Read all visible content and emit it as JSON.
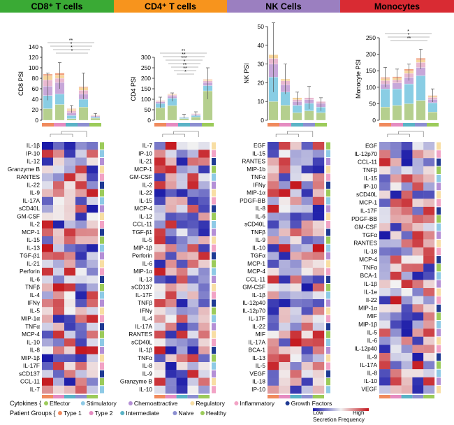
{
  "colors": {
    "cd8": "#3aaa35",
    "cd4": "#f7941d",
    "nk": "#9b7fc0",
    "mono": "#d92b33",
    "bar_stack": [
      "#b5cf8e",
      "#89cde4",
      "#c7a7d9",
      "#e9b8d0",
      "#f7d59b",
      "#f1a17f"
    ],
    "group_bar": [
      "#f08a5d",
      "#e58bc1",
      "#5ab3c6",
      "#8c8fd1",
      "#9ccb5a"
    ],
    "cytokine_cat": {
      "Effector": "#9ccb5a",
      "Stimulatory": "#8ecae6",
      "Chemoattractive": "#b48fd6",
      "Regulatory": "#f8dea3",
      "Inflammatory": "#f2a3c5",
      "Growth Factors": "#1f3a93"
    },
    "group": {
      "Type 1": "#f08a5d",
      "Type 2": "#e58bc1",
      "Intermediate": "#5ab3c6",
      "Naive": "#8c8fd1",
      "Healthy": "#9ccb5a"
    },
    "heat_low": "#1a1aa8",
    "heat_mid": "#f2f2f2",
    "heat_high": "#c4161c"
  },
  "panels": [
    {
      "title": "CD8⁺ T cells",
      "title_color": "#3aaa35",
      "ylabel": "CD8 PSI",
      "ylim": [
        0,
        140
      ],
      "yticks": [
        0,
        20,
        40,
        60,
        80,
        100,
        120,
        140
      ],
      "group_order": [
        "Type 1",
        "Type 2",
        "Intermediate",
        "Naive",
        "Healthy"
      ],
      "chart_data": {
        "type": "bar",
        "stacked": true,
        "categories": [
          "Type 1",
          "Type 2",
          "Intermediate",
          "Naive",
          "Healthy"
        ],
        "totals": [
          88,
          90,
          22,
          64,
          10
        ],
        "error": [
          [
            38,
            90
          ],
          [
            60,
            110
          ],
          [
            14,
            28
          ],
          [
            40,
            90
          ],
          [
            6,
            13
          ]
        ],
        "series": [
          {
            "values": [
              22,
              30,
              3,
              25,
              4
            ]
          },
          {
            "values": [
              25,
              20,
              6,
              15,
              2
            ]
          },
          {
            "values": [
              18,
              22,
              5,
              10,
              2
            ]
          },
          {
            "values": [
              12,
              8,
              4,
              7,
              1
            ]
          },
          {
            "values": [
              8,
              6,
              3,
              5,
              1
            ]
          },
          {
            "values": [
              3,
              4,
              1,
              2,
              0
            ]
          }
        ],
        "significance": [
          "**",
          "*",
          "*",
          "*"
        ]
      },
      "cytokines": [
        "IL-1β",
        "IP-10",
        "IL-12",
        "Granzyme B",
        "RANTES",
        "IL-22",
        "IL-9",
        "IL-17A",
        "sCD40L",
        "GM-CSF",
        "IL-2",
        "MCP-1",
        "IL-15",
        "IL-13",
        "TGF-β1",
        "IL-21",
        "Perforin",
        "IL-6",
        "TNFβ",
        "IL-4",
        "IFNγ",
        "IL-5",
        "MIP-1α",
        "TNFα",
        "MCP-4",
        "IL-10",
        "IL-8",
        "MIP-1β",
        "IL-17F",
        "sCD137",
        "CCL-11",
        "IL-7"
      ]
    },
    {
      "title": "CD4⁺ T cells",
      "title_color": "#f7941d",
      "ylabel": "CD4 PSI",
      "ylim": [
        0,
        300
      ],
      "yticks": [
        0,
        50,
        100,
        150,
        200,
        250,
        300
      ],
      "group_order": [
        "Type 1",
        "Type 2",
        "Intermediate",
        "Naive",
        "Healthy"
      ],
      "chart_data": {
        "type": "bar",
        "stacked": true,
        "categories": [
          "Type 1",
          "Type 2",
          "Intermediate",
          "Naive",
          "Healthy"
        ],
        "totals": [
          95,
          125,
          18,
          32,
          195
        ],
        "error": [
          [
            60,
            110
          ],
          [
            90,
            130
          ],
          [
            10,
            28
          ],
          [
            20,
            40
          ],
          [
            100,
            250
          ]
        ],
        "series": [
          {
            "values": [
              60,
              70,
              8,
              15,
              140
            ]
          },
          {
            "values": [
              20,
              35,
              5,
              8,
              25
            ]
          },
          {
            "values": [
              8,
              10,
              2,
              4,
              15
            ]
          },
          {
            "values": [
              4,
              5,
              1,
              3,
              8
            ]
          },
          {
            "values": [
              2,
              3,
              1,
              1,
              5
            ]
          },
          {
            "values": [
              1,
              2,
              1,
              1,
              2
            ]
          }
        ],
        "significance": [
          "**",
          "**",
          "***",
          "*",
          "**",
          "**",
          "*"
        ]
      },
      "cytokines": [
        "IL-7",
        "IP-10",
        "IL-21",
        "MCP-1",
        "GM-CSF",
        "IL-2",
        "IL-22",
        "IL-15",
        "MCP-4",
        "IL-12",
        "CCL-11",
        "TGF-β1",
        "IL-5",
        "MIP-1β",
        "Perforin",
        "IL-6",
        "MIP-1α",
        "IL-13",
        "sCD137",
        "IL-17F",
        "TNFβ",
        "IFNγ",
        "IL-4",
        "IL-17A",
        "RANTES",
        "sCD40L",
        "IL-1β",
        "TNFα",
        "IL-8",
        "IL-9",
        "Granzyme B",
        "IL-10"
      ]
    },
    {
      "title": "NK Cells",
      "title_color": "#9b7fc0",
      "ylabel": "NK PSI",
      "ylim": [
        0,
        50
      ],
      "yticks": [
        0,
        10,
        20,
        30,
        40,
        50
      ],
      "group_order": [
        "Type 1",
        "Type 2",
        "Intermediate",
        "Naive",
        "Healthy"
      ],
      "chart_data": {
        "type": "bar",
        "stacked": true,
        "categories": [
          "Type 1",
          "Type 2",
          "Intermediate",
          "Naive",
          "Healthy"
        ],
        "totals": [
          35,
          22,
          12,
          12,
          10
        ],
        "error": [
          [
            15,
            52
          ],
          [
            14,
            30
          ],
          [
            8,
            15
          ],
          [
            6,
            18
          ],
          [
            5,
            12
          ]
        ],
        "series": [
          {
            "values": [
              10,
              8,
              4,
              5,
              4
            ]
          },
          {
            "values": [
              13,
              7,
              4,
              4,
              3
            ]
          },
          {
            "values": [
              7,
              4,
              2,
              2,
              2
            ]
          },
          {
            "values": [
              3,
              2,
              1,
              1,
              1
            ]
          },
          {
            "values": [
              2,
              1,
              1,
              0,
              0
            ]
          }
        ],
        "significance": []
      },
      "cytokines": [
        "EGF",
        "IL-15",
        "RANTES",
        "MIP-1b",
        "TNFα",
        "IFNγ",
        "MIP-1α",
        "PDGF-BB",
        "IL-8",
        "IL-6",
        "sCD40L",
        "TNFβ",
        "IL-9",
        "IL-10",
        "TGFα",
        "MCP-1",
        "MCP-4",
        "CCL-11",
        "GM-CSF",
        "IL-1β",
        "IL-12p40",
        "IL-12p70",
        "IL-17F",
        "IL-22",
        "MIF",
        "IL-17A",
        "BCA-1",
        "IL-13",
        "IL-5",
        "VEGF",
        "IL-18",
        "IP-10"
      ]
    },
    {
      "title": "Monocytes",
      "title_color": "#d92b33",
      "ylabel": "Monocyte PSI",
      "ylim": [
        0,
        250
      ],
      "yticks": [
        0,
        50,
        100,
        150,
        200,
        250
      ],
      "group_order": [
        "Type 1",
        "Type 2",
        "Intermediate",
        "Naive",
        "Healthy"
      ],
      "chart_data": {
        "type": "bar",
        "stacked": true,
        "categories": [
          "Type 1",
          "Type 2",
          "Intermediate",
          "Naive",
          "Healthy"
        ],
        "totals": [
          130,
          132,
          155,
          188,
          75
        ],
        "error": [
          [
            100,
            160
          ],
          [
            115,
            155
          ],
          [
            120,
            170
          ],
          [
            155,
            215
          ],
          [
            55,
            95
          ]
        ],
        "series": [
          {
            "values": [
              40,
              45,
              50,
              60,
              25
            ]
          },
          {
            "values": [
              55,
              50,
              60,
              75,
              28
            ]
          },
          {
            "values": [
              15,
              18,
              20,
              25,
              10
            ]
          },
          {
            "values": [
              10,
              9,
              12,
              15,
              6
            ]
          },
          {
            "values": [
              6,
              6,
              8,
              8,
              4
            ]
          },
          {
            "values": [
              4,
              4,
              5,
              5,
              2
            ]
          }
        ],
        "significance": [
          "*",
          "*",
          "**"
        ]
      },
      "cytokines": [
        "EGF",
        "IL-12p70",
        "CCL-11",
        "TNFβ",
        "IL-15",
        "IP-10",
        "sCD40L",
        "MCP-1",
        "IL-17F",
        "PDGF-BB",
        "GM-CSF",
        "TGFα",
        "RANTES",
        "IL-18",
        "MCP-4",
        "TNFα",
        "BCA-1",
        "IL-1β",
        "IL-1e",
        "Il-22",
        "MIP-1α",
        "MIF",
        "MIP-1β",
        "IL-5",
        "IL-6",
        "IL-12p40",
        "IL-9",
        "IL-17A",
        "IL-8",
        "IL-10",
        "VEGF"
      ]
    }
  ],
  "legend": {
    "cytokines_label": "Cytokines {",
    "cytokine_items": [
      "Effector",
      "Stimulatory",
      "Chemoattractive",
      "Regulatory",
      "Inflammatory",
      "Growth Factors"
    ],
    "groups_label": "Patient Groups {",
    "group_items": [
      "Type 1",
      "Type 2",
      "Intermediate",
      "Naive",
      "Healthy"
    ],
    "scale_low": "Low",
    "scale_high": "High",
    "scale_title": "Secretion Frequency"
  }
}
